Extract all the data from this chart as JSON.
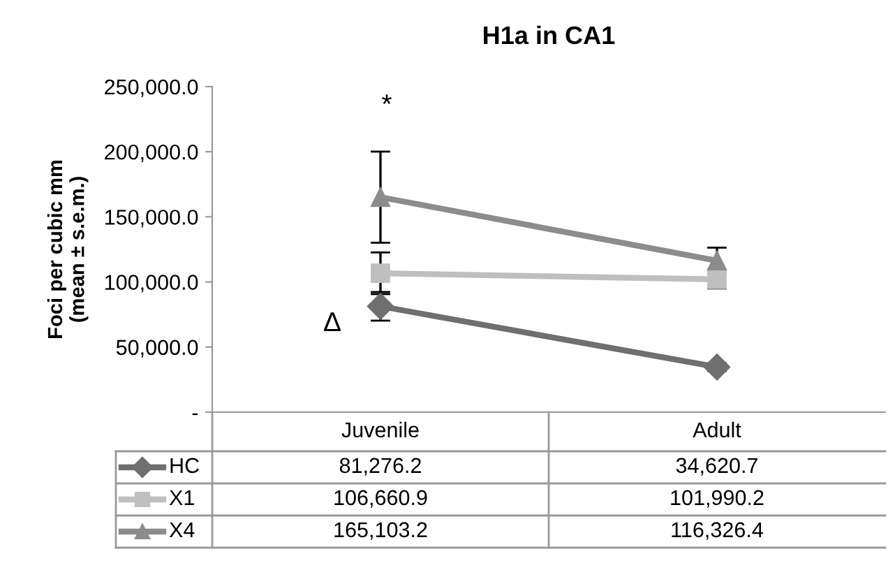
{
  "chart_data": {
    "type": "line",
    "title": "H1a in CA1",
    "ylabel": "Foci per cubic mm\n(mean ± s.e.m.)",
    "categories": [
      "Juvenile",
      "Adult"
    ],
    "series": [
      {
        "name": "HC",
        "color": "#6f6f6f",
        "marker": "diamond",
        "values": [
          81276.2,
          34620.7
        ],
        "errors": [
          11000,
          3000
        ]
      },
      {
        "name": "X1",
        "color": "#bfbfbf",
        "marker": "square",
        "values": [
          106660.9,
          101990.2
        ],
        "errors": [
          16000,
          7000
        ]
      },
      {
        "name": "X4",
        "color": "#8c8c8c",
        "marker": "triangle",
        "values": [
          165103.2,
          116326.4
        ],
        "errors": [
          35000,
          10000
        ]
      }
    ],
    "ylim": [
      0,
      250000
    ],
    "yticks": [
      {
        "value": 0,
        "label": "-"
      },
      {
        "value": 50000,
        "label": "50,000.0"
      },
      {
        "value": 100000,
        "label": "100,000.0"
      },
      {
        "value": 150000,
        "label": "150,000.0"
      },
      {
        "value": 200000,
        "label": "200,000.0"
      },
      {
        "value": 250000,
        "label": "250,000.0"
      }
    ],
    "value_labels": [
      [
        "81,276.2",
        "34,620.7"
      ],
      [
        "106,660.9",
        "101,990.2"
      ],
      [
        "165,103.2",
        "116,326.4"
      ]
    ],
    "annotations": [
      "*",
      "Δ"
    ],
    "grid": false,
    "legend": "bottom"
  }
}
